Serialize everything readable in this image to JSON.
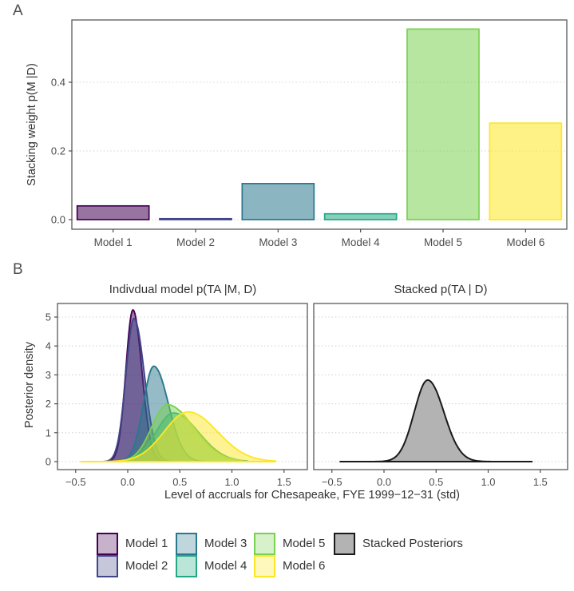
{
  "panel_a": {
    "label": "A",
    "ylabel": "Stacking weight p(M |D)"
  },
  "panel_b": {
    "label": "B",
    "left_title": "Indivdual model p(TA |M, D)",
    "right_title": "Stacked p(TA | D)",
    "ylabel": "Posterior density",
    "xlabel": "Level of accruals for Chesapeake, FYE 1999−12−31 (std)"
  },
  "legend": {
    "items": [
      {
        "label": "Model 1",
        "color": "#440154"
      },
      {
        "label": "Model 2",
        "color": "#414487"
      },
      {
        "label": "Model 3",
        "color": "#2a788e"
      },
      {
        "label": "Model 4",
        "color": "#22a884"
      },
      {
        "label": "Model 5",
        "color": "#7ad151"
      },
      {
        "label": "Model 6",
        "color": "#fde725"
      },
      {
        "label": "Stacked Posteriors",
        "color": "#1a1a1a",
        "fill": "#b3b3b3"
      }
    ]
  },
  "colors": {
    "panel_border": "#595959",
    "grid": "#d4d4d4",
    "tick_text": "#4d4d4d",
    "axis_title_text": "#333333",
    "stacked_fill": "#b3b3b3",
    "stacked_stroke": "#1a1a1a"
  },
  "chart_data": [
    {
      "id": "stacking-weights",
      "type": "bar",
      "title": "",
      "ylabel": "Stacking weight p(M |D)",
      "xlabel": "",
      "categories": [
        "Model 1",
        "Model 2",
        "Model 3",
        "Model 4",
        "Model 5",
        "Model 6"
      ],
      "values": [
        0.04,
        0.002,
        0.105,
        0.017,
        0.555,
        0.281
      ],
      "colors": [
        "#440154",
        "#414487",
        "#2a788e",
        "#22a884",
        "#7ad151",
        "#fde725"
      ],
      "yticks": [
        0.0,
        0.2,
        0.4
      ],
      "ylim": [
        0,
        0.58
      ],
      "grid": "horizontal-dotted",
      "legend_position": "none"
    },
    {
      "id": "individual-model-densities",
      "type": "area",
      "title": "Indivdual model p(TA |M, D)",
      "ylabel": "Posterior density",
      "xlabel": "Level of accruals for Chesapeake, FYE 1999−12−31 (std)",
      "xticks": [
        -0.5,
        0.0,
        0.5,
        1.0,
        1.5
      ],
      "yticks": [
        0,
        1,
        2,
        3,
        4,
        5
      ],
      "xlim": [
        -0.72,
        1.72
      ],
      "ylim": [
        0,
        5.45
      ],
      "grid": "horizontal-dotted",
      "series": [
        {
          "name": "Model 1",
          "color": "#440154",
          "peak_x": 0.05,
          "peak_y": 5.25,
          "sd_left": 0.068,
          "sd_right": 0.085,
          "x_min": -0.28,
          "x_max": 0.55
        },
        {
          "name": "Model 2",
          "color": "#414487",
          "peak_x": 0.06,
          "peak_y": 4.95,
          "sd_left": 0.078,
          "sd_right": 0.1,
          "x_min": -0.32,
          "x_max": 0.6
        },
        {
          "name": "Model 3",
          "color": "#2a788e",
          "peak_x": 0.25,
          "peak_y": 3.3,
          "sd_left": 0.1,
          "sd_right": 0.14,
          "x_min": -0.35,
          "x_max": 0.8
        },
        {
          "name": "Model 4",
          "color": "#22a884",
          "peak_x": 0.44,
          "peak_y": 1.68,
          "sd_left": 0.17,
          "sd_right": 0.24,
          "x_min": -0.4,
          "x_max": 1.15
        },
        {
          "name": "Model 5",
          "color": "#7ad151",
          "peak_x": 0.38,
          "peak_y": 1.97,
          "sd_left": 0.15,
          "sd_right": 0.25,
          "x_min": -0.42,
          "x_max": 1.1
        },
        {
          "name": "Model 6",
          "color": "#fde725",
          "peak_x": 0.58,
          "peak_y": 1.72,
          "sd_left": 0.23,
          "sd_right": 0.28,
          "x_min": -0.45,
          "x_max": 1.42
        }
      ]
    },
    {
      "id": "stacked-density",
      "type": "area",
      "title": "Stacked p(TA | D)",
      "ylabel": "",
      "xlabel": "Level of accruals for Chesapeake, FYE 1999−12−31 (std)",
      "xticks": [
        -0.5,
        0.0,
        0.5,
        1.0,
        1.5
      ],
      "yticks": [
        0,
        1,
        2,
        3,
        4,
        5
      ],
      "xlim": [
        -0.72,
        1.72
      ],
      "ylim": [
        0,
        5.45
      ],
      "grid": "horizontal-dotted",
      "series": [
        {
          "name": "Stacked Posteriors",
          "color": "#1a1a1a",
          "fill": "#b3b3b3",
          "peak_x": 0.42,
          "peak_y": 2.82,
          "sd_left": 0.13,
          "sd_right": 0.155,
          "x_min": -0.42,
          "x_max": 1.42
        }
      ]
    }
  ]
}
